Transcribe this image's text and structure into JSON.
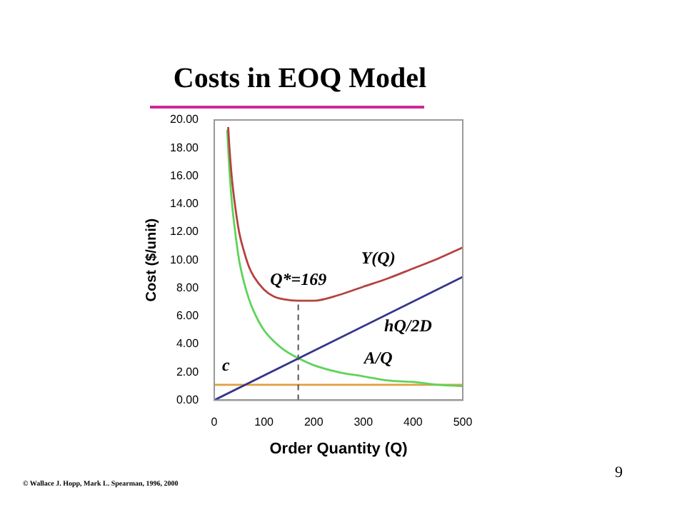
{
  "chart_data": {
    "type": "line",
    "title": "Costs in EOQ Model",
    "xlabel": "Order Quantity (Q)",
    "ylabel": "Cost ($/unit)",
    "xlim": [
      0,
      500
    ],
    "xticks": [
      0,
      100,
      200,
      300,
      400,
      500
    ],
    "ylim": [
      0,
      20
    ],
    "yticks": [
      {
        "value": 0,
        "label": "0.00"
      },
      {
        "value": 2,
        "label": "2.00"
      },
      {
        "value": 4,
        "label": "4.00"
      },
      {
        "value": 6,
        "label": "6.00"
      },
      {
        "value": 8,
        "label": "8.00"
      },
      {
        "value": 10,
        "label": "10.00"
      },
      {
        "value": 12,
        "label": "12.00"
      },
      {
        "value": 14,
        "label": "14.00"
      },
      {
        "value": 16,
        "label": "16.00"
      },
      {
        "value": 18,
        "label": "18.00"
      },
      {
        "value": 20,
        "label": "20.00"
      }
    ],
    "grid": false,
    "legend": false,
    "marker": "none",
    "line_style": "solid",
    "series": [
      {
        "name": "Y(Q)",
        "color": "#b5423f",
        "x": [
          28,
          30,
          35,
          40,
          50,
          60,
          70,
          80,
          100,
          120,
          140,
          169,
          200,
          250,
          300,
          350,
          400,
          450,
          500
        ],
        "values": [
          19.5,
          18.3,
          16.0,
          14.4,
          12.0,
          10.6,
          9.5,
          8.8,
          7.9,
          7.4,
          7.2,
          7.1,
          7.1,
          7.5,
          8.1,
          8.7,
          9.4,
          10.1,
          10.9
        ]
      },
      {
        "name": "hQ/2D",
        "color": "#34348c",
        "x": [
          0,
          500
        ],
        "values": [
          0,
          8.8
        ]
      },
      {
        "name": "A/Q",
        "color": "#5fd35a",
        "x": [
          26,
          30,
          35,
          40,
          50,
          60,
          70,
          80,
          100,
          120,
          140,
          169,
          200,
          250,
          300,
          350,
          400,
          450,
          500
        ],
        "values": [
          19.3,
          16.7,
          14.3,
          12.6,
          10.0,
          8.4,
          7.2,
          6.3,
          5.0,
          4.2,
          3.6,
          3.0,
          2.5,
          2.0,
          1.7,
          1.4,
          1.3,
          1.1,
          1.0
        ]
      },
      {
        "name": "c",
        "color": "#e0a040",
        "x": [
          0,
          500
        ],
        "values": [
          1.1,
          1.1
        ]
      }
    ],
    "ref_lines": [
      {
        "axis": "x",
        "value": 169,
        "label": "Q*=169",
        "line_style": "dashed",
        "color": "#555555"
      }
    ],
    "annotations": [
      "© Wallace J. Hopp, Mark L. Spearman, 1996, 2000",
      "9"
    ]
  }
}
